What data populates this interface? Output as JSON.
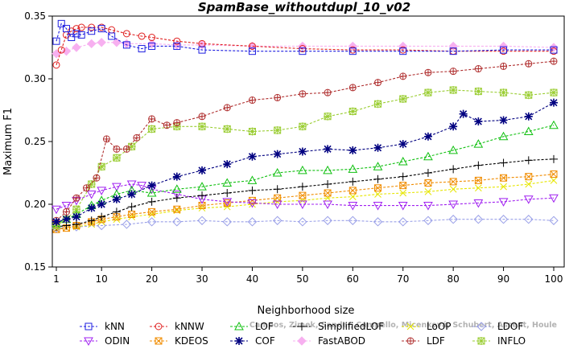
{
  "chart_data": {
    "type": "line",
    "title": "SpamBase_withoutdupl_10_v02",
    "xlabel": "Neighborhood size",
    "ylabel": "Maximum F1",
    "xlim": [
      1,
      100
    ],
    "ylim": [
      0.15,
      0.35
    ],
    "x_ticks": [
      1,
      10,
      20,
      30,
      40,
      50,
      60,
      70,
      80,
      90,
      100
    ],
    "y_ticks": [
      0.15,
      0.2,
      0.25,
      0.3,
      0.35
    ],
    "x_tick_labels": [
      "1",
      "10",
      "20",
      "30",
      "40",
      "50",
      "60",
      "70",
      "80",
      "90",
      "100"
    ],
    "y_tick_labels": [
      "0.15",
      "0.20",
      "0.25",
      "0.30",
      "0.35"
    ],
    "grid": false,
    "legend_position": "bottom",
    "series": [
      {
        "name": "kNN",
        "color": "#1f1fe0",
        "marker": "square",
        "x": [
          1,
          2,
          3,
          4,
          5,
          6,
          8,
          10,
          12,
          15,
          18,
          20,
          25,
          30,
          40,
          50,
          60,
          70,
          80,
          90,
          100
        ],
        "values": [
          0.33,
          0.344,
          0.34,
          0.333,
          0.336,
          0.335,
          0.338,
          0.34,
          0.334,
          0.327,
          0.324,
          0.326,
          0.326,
          0.323,
          0.322,
          0.322,
          0.322,
          0.322,
          0.322,
          0.323,
          0.323
        ]
      },
      {
        "name": "kNNW",
        "color": "#e02020",
        "marker": "circle",
        "x": [
          1,
          2,
          3,
          4,
          5,
          6,
          8,
          10,
          12,
          15,
          18,
          20,
          25,
          30,
          40,
          50,
          60,
          70,
          80,
          90,
          100
        ],
        "values": [
          0.311,
          0.323,
          0.335,
          0.338,
          0.34,
          0.341,
          0.341,
          0.341,
          0.339,
          0.336,
          0.334,
          0.333,
          0.33,
          0.328,
          0.326,
          0.324,
          0.323,
          0.323,
          0.322,
          0.322,
          0.322
        ]
      },
      {
        "name": "LOF",
        "color": "#10c010",
        "marker": "triangle-up",
        "x": [
          1,
          3,
          5,
          8,
          10,
          13,
          16,
          20,
          25,
          30,
          35,
          40,
          45,
          50,
          55,
          60,
          65,
          70,
          75,
          80,
          85,
          90,
          95,
          100
        ],
        "values": [
          0.185,
          0.188,
          0.192,
          0.199,
          0.203,
          0.208,
          0.211,
          0.209,
          0.212,
          0.214,
          0.217,
          0.219,
          0.225,
          0.227,
          0.227,
          0.228,
          0.23,
          0.234,
          0.238,
          0.243,
          0.248,
          0.254,
          0.258,
          0.263
        ]
      },
      {
        "name": "SimplifiedLOF",
        "color": "#000000",
        "marker": "plus",
        "x": [
          1,
          3,
          5,
          8,
          10,
          13,
          16,
          20,
          25,
          30,
          35,
          40,
          45,
          50,
          55,
          60,
          65,
          70,
          75,
          80,
          85,
          90,
          95,
          100
        ],
        "values": [
          0.182,
          0.183,
          0.184,
          0.187,
          0.19,
          0.194,
          0.198,
          0.202,
          0.205,
          0.207,
          0.209,
          0.211,
          0.212,
          0.214,
          0.216,
          0.218,
          0.22,
          0.222,
          0.225,
          0.228,
          0.231,
          0.233,
          0.235,
          0.236
        ]
      },
      {
        "name": "LoOP",
        "color": "#e6e600",
        "marker": "x",
        "x": [
          1,
          3,
          5,
          8,
          10,
          13,
          16,
          20,
          25,
          30,
          35,
          40,
          45,
          50,
          55,
          60,
          65,
          70,
          75,
          80,
          85,
          90,
          95,
          100
        ],
        "values": [
          0.18,
          0.181,
          0.182,
          0.184,
          0.186,
          0.188,
          0.19,
          0.192,
          0.195,
          0.197,
          0.198,
          0.2,
          0.202,
          0.203,
          0.205,
          0.206,
          0.208,
          0.209,
          0.21,
          0.212,
          0.213,
          0.214,
          0.216,
          0.219
        ]
      },
      {
        "name": "LDOF",
        "color": "#9aa0e8",
        "marker": "diamond",
        "x": [
          1,
          5,
          10,
          15,
          20,
          25,
          30,
          35,
          40,
          45,
          50,
          55,
          60,
          65,
          70,
          75,
          80,
          85,
          90,
          95,
          100
        ],
        "values": [
          0.181,
          0.182,
          0.183,
          0.184,
          0.186,
          0.186,
          0.187,
          0.186,
          0.186,
          0.187,
          0.186,
          0.187,
          0.187,
          0.186,
          0.186,
          0.187,
          0.188,
          0.188,
          0.188,
          0.188,
          0.187
        ]
      },
      {
        "name": "ODIN",
        "color": "#a020f0",
        "marker": "triangle-down",
        "x": [
          1,
          3,
          5,
          8,
          10,
          13,
          16,
          18,
          20,
          25,
          30,
          35,
          40,
          45,
          50,
          55,
          60,
          65,
          70,
          75,
          80,
          85,
          90,
          95,
          100
        ],
        "values": [
          0.196,
          0.199,
          0.203,
          0.208,
          0.211,
          0.214,
          0.216,
          0.215,
          0.212,
          0.208,
          0.204,
          0.202,
          0.201,
          0.2,
          0.2,
          0.2,
          0.199,
          0.199,
          0.199,
          0.199,
          0.2,
          0.201,
          0.202,
          0.204,
          0.205
        ]
      },
      {
        "name": "KDEOS",
        "color": "#f08c00",
        "marker": "square-x",
        "x": [
          1,
          3,
          5,
          8,
          10,
          13,
          16,
          20,
          25,
          30,
          35,
          40,
          45,
          50,
          55,
          60,
          65,
          70,
          75,
          80,
          85,
          90,
          95,
          100
        ],
        "values": [
          0.18,
          0.181,
          0.183,
          0.186,
          0.188,
          0.19,
          0.192,
          0.194,
          0.196,
          0.199,
          0.201,
          0.203,
          0.205,
          0.207,
          0.209,
          0.211,
          0.213,
          0.215,
          0.217,
          0.218,
          0.219,
          0.221,
          0.222,
          0.224
        ]
      },
      {
        "name": "COF",
        "color": "#000080",
        "marker": "asterisk",
        "x": [
          1,
          3,
          5,
          8,
          10,
          13,
          16,
          20,
          25,
          30,
          35,
          40,
          45,
          50,
          55,
          60,
          65,
          70,
          75,
          80,
          82,
          85,
          90,
          95,
          100
        ],
        "values": [
          0.186,
          0.188,
          0.19,
          0.197,
          0.2,
          0.204,
          0.208,
          0.215,
          0.222,
          0.227,
          0.232,
          0.238,
          0.24,
          0.242,
          0.244,
          0.243,
          0.245,
          0.248,
          0.254,
          0.262,
          0.272,
          0.266,
          0.267,
          0.27,
          0.281
        ]
      },
      {
        "name": "FastABOD",
        "color": "#f7b0f0",
        "marker": "diamond-filled",
        "x": [
          1,
          3,
          5,
          8,
          10,
          13,
          15,
          20,
          25,
          30,
          40,
          50,
          60,
          70,
          80,
          90,
          100
        ],
        "values": [
          0.32,
          0.322,
          0.325,
          0.328,
          0.329,
          0.329,
          0.328,
          0.328,
          0.327,
          0.327,
          0.326,
          0.326,
          0.326,
          0.326,
          0.326,
          0.326,
          0.325
        ]
      },
      {
        "name": "LDF",
        "color": "#b03030",
        "marker": "circle-plus",
        "x": [
          1,
          3,
          5,
          7,
          9,
          11,
          13,
          15,
          17,
          20,
          23,
          25,
          30,
          35,
          40,
          45,
          50,
          55,
          60,
          65,
          70,
          75,
          80,
          85,
          90,
          95,
          100
        ],
        "values": [
          0.187,
          0.194,
          0.205,
          0.213,
          0.221,
          0.252,
          0.244,
          0.244,
          0.253,
          0.268,
          0.263,
          0.265,
          0.27,
          0.277,
          0.283,
          0.285,
          0.288,
          0.289,
          0.293,
          0.297,
          0.302,
          0.305,
          0.306,
          0.308,
          0.31,
          0.312,
          0.314
        ]
      },
      {
        "name": "INFLO",
        "color": "#9acd32",
        "marker": "star",
        "x": [
          1,
          3,
          5,
          8,
          10,
          13,
          16,
          20,
          25,
          30,
          35,
          40,
          45,
          50,
          55,
          60,
          65,
          70,
          75,
          80,
          85,
          90,
          95,
          100
        ],
        "values": [
          0.183,
          0.188,
          0.196,
          0.216,
          0.23,
          0.237,
          0.246,
          0.26,
          0.262,
          0.262,
          0.26,
          0.258,
          0.259,
          0.262,
          0.27,
          0.274,
          0.28,
          0.284,
          0.289,
          0.291,
          0.29,
          0.289,
          0.287,
          0.289
        ]
      }
    ],
    "watermark": "Campos, Zimek, Sander, Campello, Micenková, Schubert, Assent, Houle"
  }
}
